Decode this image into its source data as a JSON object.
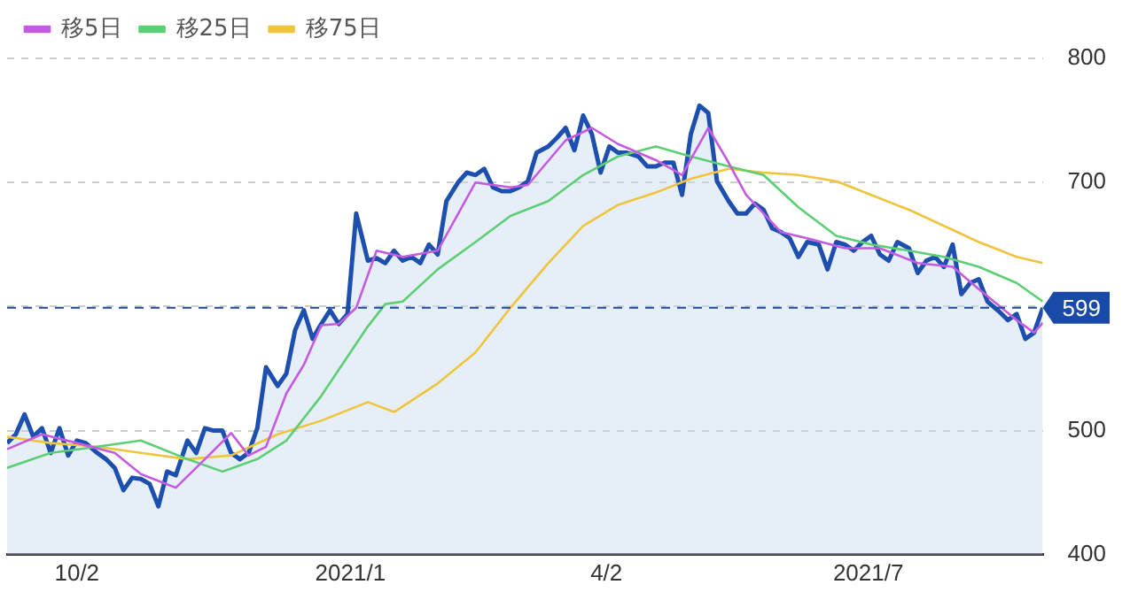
{
  "chart_data": {
    "type": "line",
    "xlim": [
      "2020-09-08",
      "2021-08-30"
    ],
    "xticks": [
      {
        "value": "2020-10-02",
        "label": "10/2"
      },
      {
        "value": "2021-01-04",
        "label": "2021/1"
      },
      {
        "value": "2021-04-02",
        "label": "4/2"
      },
      {
        "value": "2021-07-01",
        "label": "2021/7"
      }
    ],
    "ylim": [
      400,
      800
    ],
    "yticks": [
      400,
      500,
      {
        "value": 600,
        "label": null
      },
      700,
      800
    ],
    "grid": "y",
    "legend": "top left",
    "marker": "none",
    "line_style": "solid",
    "ref_lines": [
      {
        "axis": "y",
        "value": 599,
        "label": "599",
        "color": "#1a4aa8",
        "line_style": "dashed"
      }
    ],
    "series": [
      {
        "type": "area",
        "color": "#1c4fae",
        "x": [
          "2020-09-08",
          "2020-09-11",
          "2020-09-14",
          "2020-09-17",
          "2020-09-20",
          "2020-09-23",
          "2020-09-26",
          "2020-09-29",
          "2020-10-02",
          "2020-10-05",
          "2020-10-09",
          "2020-10-12",
          "2020-10-15",
          "2020-10-18",
          "2020-10-21",
          "2020-10-24",
          "2020-10-27",
          "2020-10-30",
          "2020-11-02",
          "2020-11-05",
          "2020-11-09",
          "2020-11-12",
          "2020-11-15",
          "2020-11-18",
          "2020-11-21",
          "2020-11-24",
          "2020-11-27",
          "2020-11-30",
          "2020-12-03",
          "2020-12-06",
          "2020-12-10",
          "2020-12-13",
          "2020-12-16",
          "2020-12-19",
          "2020-12-22",
          "2020-12-25",
          "2020-12-28",
          "2020-12-31",
          "2021-01-03",
          "2021-01-06",
          "2021-01-10",
          "2021-01-13",
          "2021-01-16",
          "2021-01-19",
          "2021-01-22",
          "2021-01-25",
          "2021-01-28",
          "2021-01-31",
          "2021-02-03",
          "2021-02-06",
          "2021-02-10",
          "2021-02-13",
          "2021-02-16",
          "2021-02-19",
          "2021-02-22",
          "2021-02-25",
          "2021-02-28",
          "2021-03-03",
          "2021-03-06",
          "2021-03-09",
          "2021-03-13",
          "2021-03-16",
          "2021-03-19",
          "2021-03-22",
          "2021-03-25",
          "2021-03-28",
          "2021-03-31",
          "2021-04-03",
          "2021-04-06",
          "2021-04-09",
          "2021-04-13",
          "2021-04-16",
          "2021-04-19",
          "2021-04-22",
          "2021-04-25",
          "2021-04-28",
          "2021-05-01",
          "2021-05-04",
          "2021-05-07",
          "2021-05-10",
          "2021-05-14",
          "2021-05-17",
          "2021-05-20",
          "2021-05-23",
          "2021-05-26",
          "2021-05-29",
          "2021-06-01",
          "2021-06-04",
          "2021-06-07",
          "2021-06-10",
          "2021-06-14",
          "2021-06-17",
          "2021-06-20",
          "2021-06-23",
          "2021-06-26",
          "2021-06-29",
          "2021-07-02",
          "2021-07-05",
          "2021-07-08",
          "2021-07-11",
          "2021-07-15",
          "2021-07-18",
          "2021-07-21",
          "2021-07-24",
          "2021-07-27",
          "2021-07-30",
          "2021-08-02",
          "2021-08-05",
          "2021-08-08",
          "2021-08-11",
          "2021-08-15",
          "2021-08-18",
          "2021-08-21",
          "2021-08-24",
          "2021-08-27",
          "2021-08-30"
        ],
        "values": [
          490,
          497,
          513,
          495,
          502,
          482,
          502,
          480,
          492,
          490,
          482,
          477,
          470,
          452,
          462,
          461,
          457,
          439,
          467,
          464,
          492,
          482,
          502,
          500,
          500,
          482,
          477,
          482,
          502,
          551,
          536,
          546,
          581,
          597,
          574,
          586,
          597,
          586,
          594,
          675,
          637,
          639,
          635,
          645,
          637,
          640,
          635,
          650,
          642,
          685,
          700,
          708,
          706,
          711,
          696,
          693,
          693,
          696,
          701,
          724,
          729,
          736,
          744,
          726,
          754,
          739,
          708,
          729,
          724,
          724,
          721,
          713,
          713,
          716,
          716,
          690,
          739,
          762,
          756,
          701,
          685,
          675,
          675,
          683,
          678,
          663,
          660,
          655,
          640,
          652,
          650,
          630,
          652,
          650,
          645,
          652,
          657,
          642,
          637,
          652,
          647,
          627,
          637,
          640,
          632,
          650,
          610,
          619,
          622,
          604,
          596,
          589,
          594,
          574,
          579,
          599
        ]
      },
      {
        "type": "line",
        "name": "移5日",
        "color": "#c45be0",
        "x": [
          "2020-09-08",
          "2020-09-20",
          "2020-10-02",
          "2020-10-15",
          "2020-10-24",
          "2020-11-05",
          "2020-11-15",
          "2020-11-24",
          "2020-11-30",
          "2020-12-06",
          "2020-12-13",
          "2020-12-19",
          "2020-12-25",
          "2020-12-31",
          "2021-01-06",
          "2021-01-13",
          "2021-01-22",
          "2021-02-03",
          "2021-02-16",
          "2021-02-28",
          "2021-03-06",
          "2021-03-19",
          "2021-03-28",
          "2021-04-06",
          "2021-04-19",
          "2021-04-28",
          "2021-05-07",
          "2021-05-14",
          "2021-05-20",
          "2021-06-01",
          "2021-06-10",
          "2021-06-23",
          "2021-07-05",
          "2021-07-18",
          "2021-07-30",
          "2021-08-08",
          "2021-08-21",
          "2021-08-27",
          "2021-08-30"
        ],
        "values": [
          485,
          497,
          490,
          482,
          465,
          454,
          477,
          498,
          480,
          487,
          530,
          553,
          585,
          586,
          599,
          645,
          640,
          645,
          700,
          696,
          698,
          734,
          744,
          731,
          718,
          706,
          744,
          716,
          690,
          660,
          655,
          647,
          647,
          635,
          632,
          614,
          589,
          579,
          587
        ]
      },
      {
        "type": "line",
        "name": "移25日",
        "color": "#5ccf74",
        "x": [
          "2020-09-08",
          "2020-09-23",
          "2020-10-09",
          "2020-10-24",
          "2020-11-09",
          "2020-11-21",
          "2020-12-03",
          "2020-12-13",
          "2020-12-25",
          "2021-01-10",
          "2021-01-16",
          "2021-01-22",
          "2021-02-03",
          "2021-02-16",
          "2021-02-28",
          "2021-03-13",
          "2021-03-25",
          "2021-04-06",
          "2021-04-19",
          "2021-05-01",
          "2021-05-14",
          "2021-05-26",
          "2021-06-07",
          "2021-06-20",
          "2021-07-02",
          "2021-07-15",
          "2021-07-27",
          "2021-08-08",
          "2021-08-21",
          "2021-08-30"
        ],
        "values": [
          470,
          482,
          487,
          492,
          477,
          467,
          477,
          492,
          528,
          584,
          602,
          604,
          630,
          652,
          673,
          685,
          706,
          721,
          729,
          721,
          713,
          706,
          680,
          657,
          650,
          645,
          640,
          632,
          619,
          604
        ]
      },
      {
        "type": "line",
        "name": "移75日",
        "color": "#f0c43c",
        "x": [
          "2020-09-08",
          "2020-09-23",
          "2020-10-09",
          "2020-10-24",
          "2020-11-09",
          "2020-11-24",
          "2020-12-10",
          "2020-12-25",
          "2021-01-10",
          "2021-01-19",
          "2021-02-03",
          "2021-02-16",
          "2021-02-28",
          "2021-03-13",
          "2021-03-25",
          "2021-04-06",
          "2021-04-19",
          "2021-05-01",
          "2021-05-14",
          "2021-05-26",
          "2021-06-07",
          "2021-06-20",
          "2021-07-02",
          "2021-07-15",
          "2021-07-27",
          "2021-08-08",
          "2021-08-21",
          "2021-08-30"
        ],
        "values": [
          495,
          490,
          487,
          482,
          477,
          480,
          497,
          508,
          523,
          515,
          538,
          563,
          599,
          635,
          665,
          682,
          692,
          703,
          711,
          708,
          706,
          701,
          690,
          678,
          665,
          652,
          640,
          635
        ]
      }
    ]
  }
}
